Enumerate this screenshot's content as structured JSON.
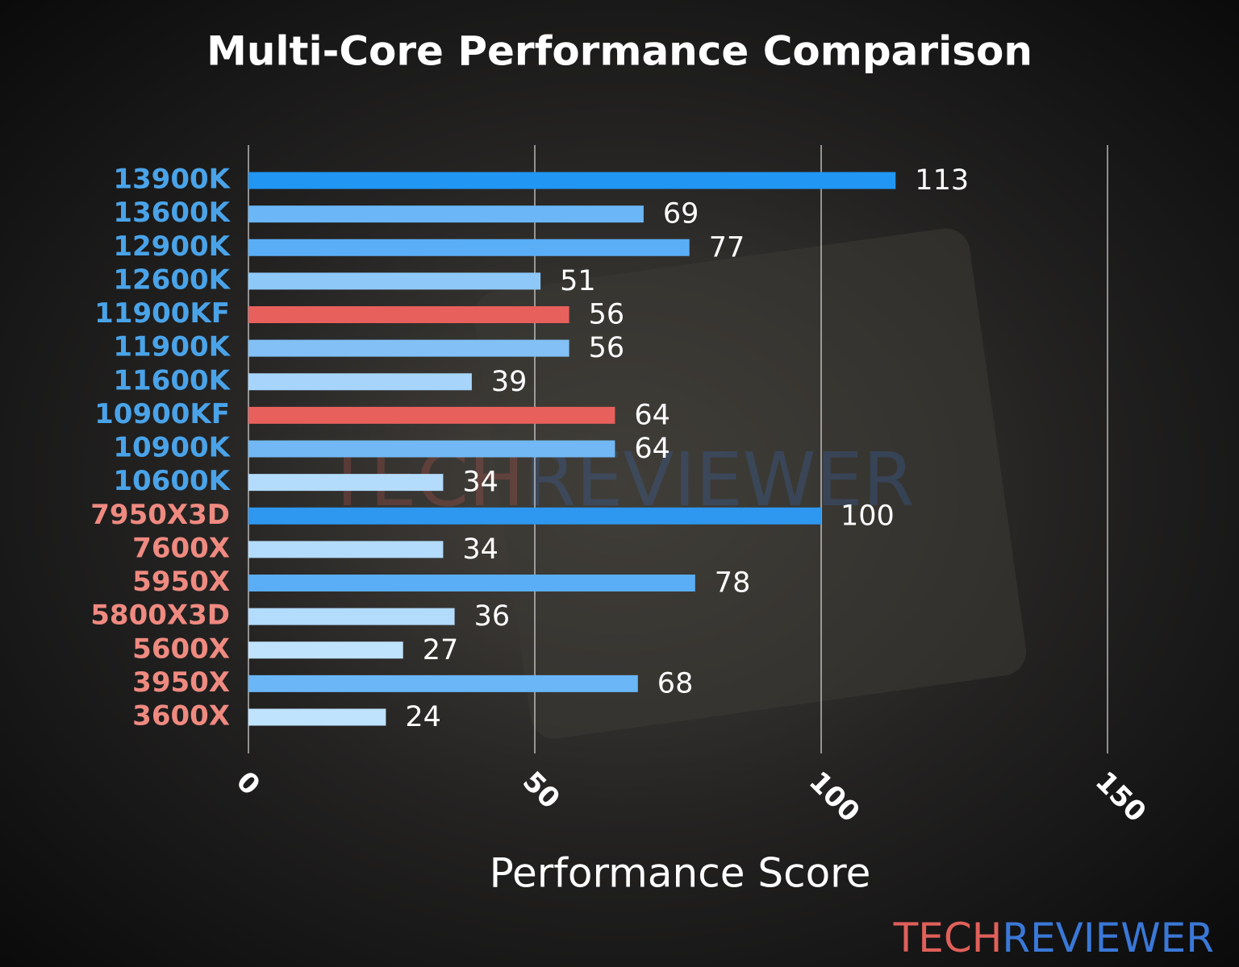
{
  "chart_data": {
    "type": "hbar",
    "title": "Multi-Core Performance Comparison",
    "x_label": "Performance Score",
    "categories": [
      "13900K",
      "13600K",
      "12900K",
      "12600K",
      "11900KF",
      "11900K",
      "11600K",
      "10900KF",
      "10900K",
      "10600K",
      "7950X3D",
      "7600X",
      "5950X",
      "5800X3D",
      "5600X",
      "3950X",
      "3600X"
    ],
    "category_colors": [
      "#4aa3e8",
      "#4aa3e8",
      "#4aa3e8",
      "#4aa3e8",
      "#4aa3e8",
      "#4aa3e8",
      "#4aa3e8",
      "#4aa3e8",
      "#4aa3e8",
      "#4aa3e8",
      "#ef8a80",
      "#ef8a80",
      "#ef8a80",
      "#ef8a80",
      "#ef8a80",
      "#ef8a80",
      "#ef8a80"
    ],
    "values": [
      113,
      69,
      77,
      51,
      56,
      56,
      39,
      64,
      64,
      34,
      100,
      34,
      78,
      36,
      27,
      68,
      24
    ],
    "colors": [
      "#2196f3",
      "#6ab6f6",
      "#5aaef5",
      "#8ec8f8",
      "#e8605c",
      "#82c0f5",
      "#a6d4fa",
      "#e8605c",
      "#72b8f5",
      "#b3dbfb",
      "#2e97ef",
      "#b3dbfb",
      "#5aaef5",
      "#b3dbfb",
      "#bfe2fd",
      "#6ab6f6",
      "#bfe2fd"
    ],
    "xlim": [
      0,
      150
    ],
    "xticks": [
      0,
      50,
      100,
      150
    ],
    "grid": true
  },
  "logo": {
    "parts": [
      "TECH",
      "REVIEWER"
    ],
    "colors": [
      "#e0605a",
      "#3a78d8"
    ]
  }
}
